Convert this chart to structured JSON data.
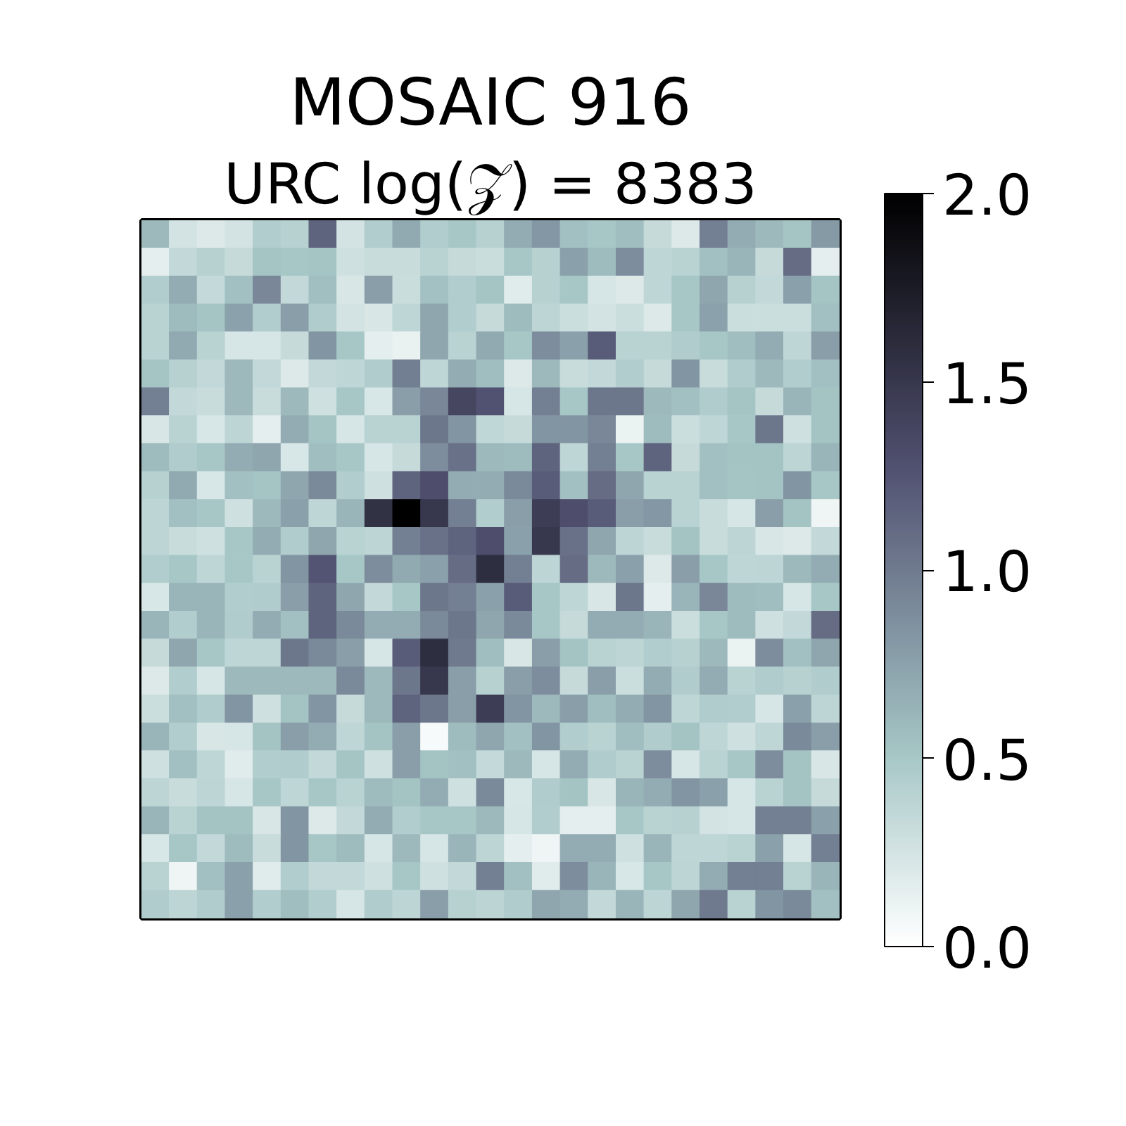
{
  "chart_data": {
    "type": "heatmap",
    "title": "MOSAIC 916",
    "subtitle": "URC log(𝒵) = 8383",
    "categories": [
      null,
      null,
      null,
      null,
      null,
      null,
      null,
      null,
      null,
      null,
      null,
      null,
      null,
      null,
      null,
      null,
      null,
      null,
      null,
      null,
      null,
      null,
      null,
      null,
      null
    ],
    "y_categories": [
      null,
      null,
      null,
      null,
      null,
      null,
      null,
      null,
      null,
      null,
      null,
      null,
      null,
      null,
      null,
      null,
      null,
      null,
      null,
      null,
      null,
      null,
      null,
      null,
      null
    ],
    "clim": [
      0,
      2
    ],
    "cticks": [
      {
        "value": 0,
        "label": "0.0"
      },
      0.5,
      {
        "value": 1,
        "label": "1.0"
      },
      1.5,
      {
        "value": 2,
        "label": "2.0"
      }
    ],
    "cells": [
      [
        0.6,
        0.25,
        0.2,
        0.25,
        0.45,
        0.42,
        1.15,
        0.25,
        0.45,
        0.7,
        0.45,
        0.5,
        0.42,
        0.68,
        0.82,
        0.55,
        0.5,
        0.57,
        0.33,
        0.2,
        0.97,
        0.68,
        0.6,
        0.52,
        0.8
      ],
      [
        0.15,
        0.35,
        0.42,
        0.33,
        0.52,
        0.5,
        0.52,
        0.28,
        0.32,
        0.32,
        0.4,
        0.33,
        0.31,
        0.5,
        0.42,
        0.76,
        0.58,
        0.88,
        0.37,
        0.4,
        0.55,
        0.62,
        0.33,
        1.1,
        0.15
      ],
      [
        0.45,
        0.68,
        0.34,
        0.55,
        0.92,
        0.35,
        0.56,
        0.22,
        0.77,
        0.31,
        0.54,
        0.45,
        0.52,
        0.18,
        0.42,
        0.5,
        0.24,
        0.2,
        0.37,
        0.5,
        0.72,
        0.42,
        0.35,
        0.76,
        0.52
      ],
      [
        0.4,
        0.58,
        0.52,
        0.75,
        0.45,
        0.77,
        0.46,
        0.25,
        0.22,
        0.37,
        0.72,
        0.45,
        0.33,
        0.58,
        0.38,
        0.3,
        0.25,
        0.3,
        0.2,
        0.5,
        0.75,
        0.3,
        0.3,
        0.3,
        0.55
      ],
      [
        0.4,
        0.7,
        0.4,
        0.24,
        0.24,
        0.33,
        0.83,
        0.5,
        0.15,
        0.13,
        0.72,
        0.4,
        0.7,
        0.5,
        0.88,
        0.76,
        1.2,
        0.4,
        0.4,
        0.46,
        0.5,
        0.57,
        0.68,
        0.37,
        0.77
      ],
      [
        0.52,
        0.42,
        0.35,
        0.6,
        0.35,
        0.2,
        0.35,
        0.37,
        0.46,
        0.98,
        0.37,
        0.68,
        0.57,
        0.2,
        0.6,
        0.32,
        0.35,
        0.45,
        0.33,
        0.83,
        0.32,
        0.46,
        0.6,
        0.45,
        0.55
      ],
      [
        0.97,
        0.35,
        0.32,
        0.6,
        0.32,
        0.6,
        0.28,
        0.5,
        0.23,
        0.77,
        0.92,
        1.37,
        1.27,
        0.24,
        0.97,
        0.5,
        1.03,
        1.03,
        0.6,
        0.55,
        0.46,
        0.52,
        0.33,
        0.62,
        0.53
      ],
      [
        0.22,
        0.4,
        0.23,
        0.38,
        0.15,
        0.68,
        0.52,
        0.24,
        0.4,
        0.4,
        1.03,
        0.83,
        0.36,
        0.33,
        0.83,
        0.83,
        0.92,
        0.12,
        0.58,
        0.3,
        0.37,
        0.5,
        1.03,
        0.28,
        0.53
      ],
      [
        0.58,
        0.46,
        0.5,
        0.68,
        0.72,
        0.23,
        0.57,
        0.5,
        0.24,
        0.33,
        0.88,
        1.07,
        0.6,
        0.58,
        1.15,
        0.37,
        0.97,
        0.5,
        1.15,
        0.33,
        0.55,
        0.53,
        0.53,
        0.38,
        0.62
      ],
      [
        0.42,
        0.7,
        0.23,
        0.55,
        0.52,
        0.72,
        0.9,
        0.45,
        0.28,
        1.15,
        1.3,
        0.68,
        0.68,
        0.9,
        1.2,
        0.55,
        1.1,
        0.72,
        0.4,
        0.4,
        0.55,
        0.52,
        0.53,
        0.83,
        0.5
      ],
      [
        0.38,
        0.55,
        0.5,
        0.28,
        0.6,
        0.76,
        0.37,
        0.62,
        1.55,
        2.0,
        1.5,
        0.97,
        0.45,
        0.77,
        1.45,
        1.3,
        1.2,
        0.77,
        0.82,
        0.4,
        0.32,
        0.24,
        0.77,
        0.53,
        0.1
      ],
      [
        0.38,
        0.32,
        0.28,
        0.5,
        0.68,
        0.46,
        0.72,
        0.4,
        0.38,
        0.97,
        1.07,
        1.15,
        1.3,
        0.76,
        1.5,
        1.07,
        0.72,
        0.38,
        0.32,
        0.53,
        0.32,
        0.38,
        0.22,
        0.2,
        0.35
      ],
      [
        0.45,
        0.5,
        0.37,
        0.5,
        0.4,
        0.83,
        1.25,
        0.5,
        0.88,
        0.7,
        0.76,
        1.1,
        1.58,
        0.97,
        0.38,
        1.1,
        0.6,
        0.76,
        0.2,
        0.77,
        0.5,
        0.37,
        0.38,
        0.6,
        0.68
      ],
      [
        0.23,
        0.62,
        0.62,
        0.45,
        0.46,
        0.77,
        1.15,
        0.72,
        0.35,
        0.5,
        1.03,
        0.97,
        0.76,
        1.2,
        0.5,
        0.37,
        0.22,
        1.03,
        0.15,
        0.62,
        0.92,
        0.58,
        0.57,
        0.24,
        0.5
      ],
      [
        0.62,
        0.45,
        0.62,
        0.46,
        0.68,
        0.55,
        1.15,
        0.9,
        0.68,
        0.68,
        0.9,
        1.03,
        0.72,
        0.9,
        0.5,
        0.33,
        0.68,
        0.68,
        0.62,
        0.3,
        0.5,
        0.58,
        0.28,
        0.35,
        1.1
      ],
      [
        0.33,
        0.72,
        0.5,
        0.37,
        0.37,
        1.03,
        0.9,
        0.77,
        0.24,
        1.2,
        1.58,
        1.0,
        0.57,
        0.22,
        0.77,
        0.53,
        0.4,
        0.38,
        0.45,
        0.42,
        0.6,
        0.12,
        0.88,
        0.55,
        0.72
      ],
      [
        0.2,
        0.45,
        0.24,
        0.6,
        0.6,
        0.6,
        0.6,
        0.9,
        0.6,
        1.03,
        1.5,
        0.77,
        0.42,
        0.77,
        0.88,
        0.33,
        0.77,
        0.3,
        0.68,
        0.46,
        0.68,
        0.4,
        0.46,
        0.42,
        0.46
      ],
      [
        0.3,
        0.55,
        0.46,
        0.83,
        0.28,
        0.53,
        0.83,
        0.33,
        0.6,
        1.15,
        1.03,
        0.77,
        1.45,
        0.83,
        0.6,
        0.77,
        0.57,
        0.68,
        0.83,
        0.37,
        0.46,
        0.45,
        0.24,
        0.76,
        0.38
      ],
      [
        0.62,
        0.45,
        0.22,
        0.24,
        0.53,
        0.77,
        0.68,
        0.37,
        0.53,
        0.77,
        0.05,
        0.58,
        0.72,
        0.55,
        0.83,
        0.45,
        0.4,
        0.57,
        0.46,
        0.53,
        0.37,
        0.28,
        0.37,
        0.9,
        0.77
      ],
      [
        0.28,
        0.55,
        0.37,
        0.18,
        0.45,
        0.46,
        0.35,
        0.52,
        0.28,
        0.77,
        0.53,
        0.55,
        0.34,
        0.6,
        0.24,
        0.68,
        0.46,
        0.4,
        0.88,
        0.24,
        0.4,
        0.5,
        0.88,
        0.53,
        0.22
      ],
      [
        0.38,
        0.32,
        0.38,
        0.24,
        0.5,
        0.37,
        0.5,
        0.4,
        0.58,
        0.53,
        0.68,
        0.28,
        0.9,
        0.23,
        0.46,
        0.53,
        0.22,
        0.62,
        0.68,
        0.83,
        0.76,
        0.24,
        0.4,
        0.53,
        0.33
      ],
      [
        0.62,
        0.4,
        0.53,
        0.53,
        0.22,
        0.83,
        0.2,
        0.35,
        0.68,
        0.45,
        0.5,
        0.5,
        0.6,
        0.24,
        0.45,
        0.15,
        0.15,
        0.5,
        0.4,
        0.42,
        0.25,
        0.24,
        0.97,
        0.97,
        0.76
      ],
      [
        0.23,
        0.5,
        0.35,
        0.58,
        0.32,
        0.83,
        0.5,
        0.58,
        0.24,
        0.6,
        0.24,
        0.62,
        0.38,
        0.15,
        0.1,
        0.68,
        0.68,
        0.28,
        0.62,
        0.37,
        0.37,
        0.4,
        0.76,
        0.24,
        0.97
      ],
      [
        0.4,
        0.1,
        0.55,
        0.76,
        0.18,
        0.45,
        0.35,
        0.35,
        0.28,
        0.5,
        0.28,
        0.35,
        0.97,
        0.55,
        0.18,
        0.88,
        0.62,
        0.23,
        0.5,
        0.38,
        0.68,
        0.97,
        0.97,
        0.4,
        0.62
      ],
      [
        0.46,
        0.38,
        0.46,
        0.76,
        0.45,
        0.57,
        0.45,
        0.24,
        0.46,
        0.38,
        0.77,
        0.42,
        0.39,
        0.46,
        0.72,
        0.68,
        0.35,
        0.62,
        0.38,
        0.72,
        1.0,
        0.4,
        0.83,
        0.9,
        0.55
      ]
    ]
  }
}
